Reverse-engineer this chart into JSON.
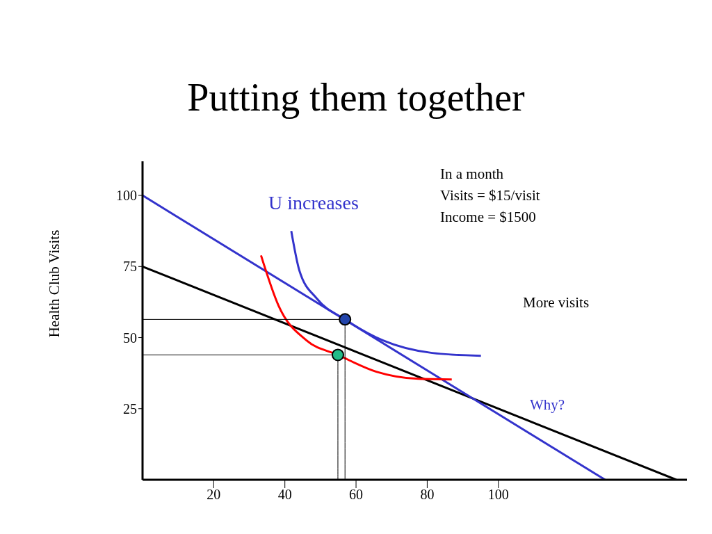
{
  "chart_data": {
    "type": "line",
    "title": "Putting them together",
    "ylabel": "Health Club Visits",
    "xlim": [
      0,
      153
    ],
    "ylim": [
      0,
      112
    ],
    "xticks": [
      20,
      40,
      60,
      80,
      100
    ],
    "yticks": [
      25,
      50,
      75,
      100
    ],
    "marker": "none",
    "line_style": "solid",
    "series": [
      {
        "color": "#000000",
        "x": [
          0,
          150
        ],
        "values": [
          75,
          0
        ]
      },
      {
        "color": "#3333cc",
        "x": [
          0,
          130
        ],
        "values": [
          100,
          0
        ]
      },
      {
        "color": "#ff0000",
        "x": [
          33.3,
          38.2,
          46.1,
          54.9,
          65.7,
          77.5,
          86.9
        ],
        "values": [
          78.9,
          61.3,
          49,
          43.9,
          38,
          35.5,
          35.3
        ]
      },
      {
        "color": "#3333cc",
        "x": [
          41.8,
          44.1,
          49,
          56.9,
          67.6,
          81.4,
          95.1
        ],
        "values": [
          87.5,
          73.5,
          63.7,
          56.4,
          49,
          44.6,
          43.6
        ]
      },
      {
        "color": "#000000",
        "x": [
          0,
          54.9,
          54.9
        ],
        "values": [
          43.9,
          43.9,
          0
        ]
      },
      {
        "color": "#000000",
        "x": [
          0,
          56.9,
          56.9
        ],
        "values": [
          56.4,
          56.4,
          0
        ]
      },
      {
        "type": "scatter",
        "marker": "circle",
        "colors": [
          "#22bb88",
          "#2244aa"
        ],
        "x": [
          54.9,
          56.9
        ],
        "values": [
          43.9,
          56.4
        ]
      }
    ],
    "annotations": [
      "U increases",
      "In a month",
      "Visits = $15/visit",
      "Income = $1500",
      "More visits",
      "Why?"
    ]
  }
}
